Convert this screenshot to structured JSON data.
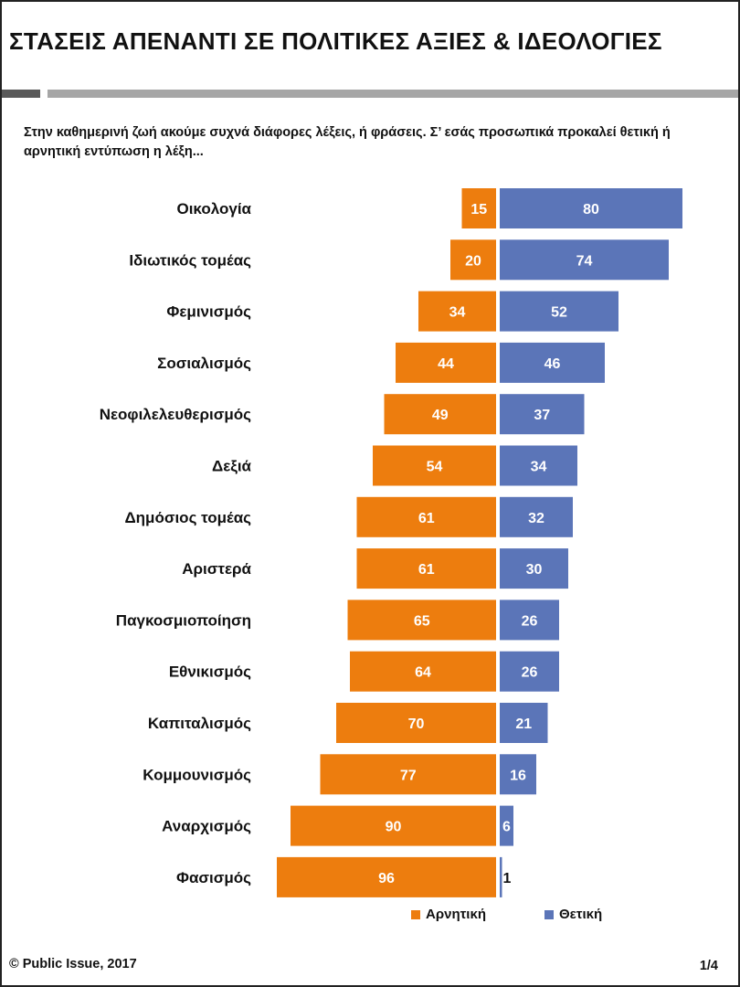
{
  "header": {
    "title": "ΣΤΑΣΕΙΣ ΑΠΕΝΑΝΤΙ ΣΕ ΠΟΛΙΤΙΚΕΣ ΑΞΙΕΣ & ΙΔΕΟΛΟΓΙΕΣ",
    "question": "Στην καθημερινή ζωή ακούμε συχνά διάφορες λέξεις, ή φράσεις. Σ’ εσάς προσωπικά προκαλεί θετική ή αρνητική εντύπωση η λέξη..."
  },
  "colors": {
    "negative": "#ed7d0e",
    "positive": "#5b75b8"
  },
  "chart_data": {
    "type": "bar",
    "orientation": "horizontal-diverging",
    "categories": [
      "Οικολογία",
      "Ιδιωτικός τομέας",
      "Φεμινισμός",
      "Σοσιαλισμός",
      "Νεοφιλελευθερισμός",
      "Δεξιά",
      "Δημόσιος τομέας",
      "Αριστερά",
      "Παγκοσμιοποίηση",
      "Εθνικισμός",
      "Καπιταλισμός",
      "Κομμουνισμός",
      "Αναρχισμός",
      "Φασισμός"
    ],
    "series": [
      {
        "name": "Αρνητική",
        "color": "#ed7d0e",
        "values": [
          15,
          20,
          34,
          44,
          49,
          54,
          61,
          61,
          65,
          64,
          70,
          77,
          90,
          96
        ]
      },
      {
        "name": "Θετική",
        "color": "#5b75b8",
        "values": [
          80,
          74,
          52,
          46,
          37,
          34,
          32,
          30,
          26,
          26,
          21,
          16,
          6,
          1
        ]
      }
    ],
    "legend_position": "bottom",
    "grid": false
  },
  "footer": {
    "source": "© Public Issue, 2017",
    "page": "1/4"
  }
}
